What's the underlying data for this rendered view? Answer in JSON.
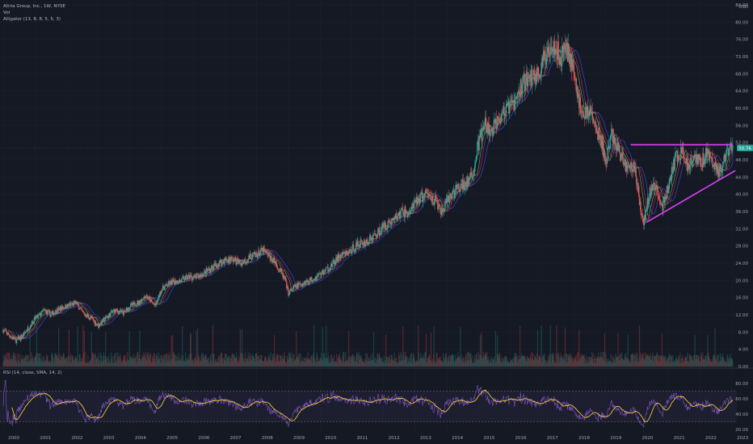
{
  "chart_data": {
    "type": "candlestick",
    "title": "Altria Group, Inc., 1W, NYSE",
    "indicators": [
      "Vol",
      "Alligator (13, 8, 8, 5, 5, 3)"
    ],
    "price_axis": {
      "ticks": [
        "84.00",
        "80.00",
        "76.00",
        "72.00",
        "68.00",
        "64.00",
        "60.00",
        "56.00",
        "52.00",
        "48.00",
        "44.00",
        "40.00",
        "36.00",
        "32.00",
        "28.00",
        "24.00",
        "20.00",
        "16.00",
        "12.00",
        "8.00",
        "4.00",
        "0.00"
      ],
      "top_label": "USD",
      "ylim": [
        0,
        84
      ]
    },
    "last_price_label": "50.76",
    "last_price": 50.76,
    "x_ticks": [
      "2000",
      "2001",
      "2002",
      "2003",
      "2004",
      "2005",
      "2006",
      "2007",
      "2008",
      "2009",
      "2010",
      "2011",
      "2012",
      "2013",
      "2014",
      "2015",
      "2016",
      "2017",
      "2018",
      "2019",
      "2020",
      "2021",
      "2022",
      "2023"
    ],
    "xlim": [
      2000.0,
      2023.15
    ],
    "price_series": [
      [
        2000.0,
        8.5
      ],
      [
        2000.2,
        7.2
      ],
      [
        2000.4,
        6.0
      ],
      [
        2000.6,
        7.0
      ],
      [
        2000.8,
        9.0
      ],
      [
        2001.0,
        11.0
      ],
      [
        2001.3,
        13.0
      ],
      [
        2001.5,
        12.0
      ],
      [
        2001.8,
        13.5
      ],
      [
        2002.0,
        14.0
      ],
      [
        2002.3,
        14.8
      ],
      [
        2002.5,
        12.5
      ],
      [
        2002.8,
        11.0
      ],
      [
        2003.0,
        9.5
      ],
      [
        2003.2,
        11.0
      ],
      [
        2003.5,
        13.0
      ],
      [
        2003.8,
        12.5
      ],
      [
        2004.0,
        14.0
      ],
      [
        2004.3,
        15.0
      ],
      [
        2004.5,
        16.5
      ],
      [
        2004.8,
        14.0
      ],
      [
        2005.0,
        18.0
      ],
      [
        2005.3,
        19.5
      ],
      [
        2005.6,
        20.0
      ],
      [
        2005.9,
        21.0
      ],
      [
        2006.0,
        20.5
      ],
      [
        2006.3,
        21.5
      ],
      [
        2006.6,
        23.0
      ],
      [
        2006.9,
        24.5
      ],
      [
        2007.2,
        25.0
      ],
      [
        2007.5,
        24.0
      ],
      [
        2007.8,
        25.5
      ],
      [
        2008.0,
        26.0
      ],
      [
        2008.2,
        27.0
      ],
      [
        2008.4,
        25.5
      ],
      [
        2008.6,
        24.0
      ],
      [
        2008.9,
        20.0
      ],
      [
        2009.0,
        17.0
      ],
      [
        2009.2,
        18.5
      ],
      [
        2009.5,
        19.5
      ],
      [
        2009.8,
        20.5
      ],
      [
        2010.0,
        21.5
      ],
      [
        2010.3,
        23.0
      ],
      [
        2010.6,
        25.5
      ],
      [
        2010.9,
        26.5
      ],
      [
        2011.2,
        28.5
      ],
      [
        2011.5,
        29.0
      ],
      [
        2011.8,
        31.0
      ],
      [
        2012.0,
        32.5
      ],
      [
        2012.3,
        34.0
      ],
      [
        2012.6,
        36.0
      ],
      [
        2012.8,
        35.5
      ],
      [
        2013.1,
        39.0
      ],
      [
        2013.4,
        40.0
      ],
      [
        2013.7,
        38.0
      ],
      [
        2013.8,
        35.5
      ],
      [
        2014.0,
        38.0
      ],
      [
        2014.2,
        40.5
      ],
      [
        2014.5,
        42.0
      ],
      [
        2014.8,
        44.0
      ],
      [
        2015.0,
        52.0
      ],
      [
        2015.2,
        56.0
      ],
      [
        2015.4,
        54.0
      ],
      [
        2015.6,
        58.0
      ],
      [
        2015.9,
        59.5
      ],
      [
        2016.2,
        62.0
      ],
      [
        2016.4,
        66.0
      ],
      [
        2016.6,
        67.0
      ],
      [
        2016.9,
        68.0
      ],
      [
        2017.1,
        71.5
      ],
      [
        2017.3,
        76.0
      ],
      [
        2017.5,
        73.0
      ],
      [
        2017.6,
        71.0
      ],
      [
        2017.7,
        75.0
      ],
      [
        2017.9,
        72.0
      ],
      [
        2018.1,
        64.0
      ],
      [
        2018.3,
        58.0
      ],
      [
        2018.5,
        60.0
      ],
      [
        2018.7,
        55.0
      ],
      [
        2018.9,
        52.0
      ],
      [
        2019.0,
        47.0
      ],
      [
        2019.2,
        54.0
      ],
      [
        2019.5,
        49.0
      ],
      [
        2019.7,
        46.0
      ],
      [
        2019.9,
        47.0
      ],
      [
        2020.2,
        33.0
      ],
      [
        2020.4,
        40.5
      ],
      [
        2020.6,
        42.0
      ],
      [
        2020.8,
        37.0
      ],
      [
        2021.0,
        42.0
      ],
      [
        2021.2,
        48.0
      ],
      [
        2021.4,
        50.0
      ],
      [
        2021.6,
        46.5
      ],
      [
        2021.8,
        49.5
      ],
      [
        2022.0,
        47.0
      ],
      [
        2022.2,
        50.0
      ],
      [
        2022.4,
        47.0
      ],
      [
        2022.6,
        45.0
      ],
      [
        2022.8,
        48.5
      ],
      [
        2023.0,
        50.76
      ]
    ],
    "volume_scale_note": "relative",
    "drawings": [
      {
        "type": "horizontal-resistance",
        "color": "#e040fb",
        "from": [
          2019.8,
          51.5
        ],
        "to": [
          2023.0,
          51.5
        ]
      },
      {
        "type": "ascending-support",
        "color": "#e040fb",
        "from": [
          2020.3,
          33.5
        ],
        "to": [
          2023.1,
          45.5
        ]
      }
    ],
    "rsi": {
      "label": "RSI (14, close, SMA, 14, 2)",
      "ticks": [
        "80.00",
        "60.00",
        "40.00",
        "20.00"
      ],
      "ylim": [
        20,
        85
      ],
      "upper_band": 70,
      "lower_band": 30
    }
  },
  "colors": {
    "background": "#151924",
    "up": "#26a69a",
    "down": "#ef5350",
    "jaw": "#2962ff",
    "teeth": "#e91e63",
    "lips": "#66bb6a",
    "rsi_line": "#7e57c2",
    "rsi_sma": "#fdd835",
    "trendline": "#e040fb",
    "last_price_bg": "#26a69a"
  }
}
